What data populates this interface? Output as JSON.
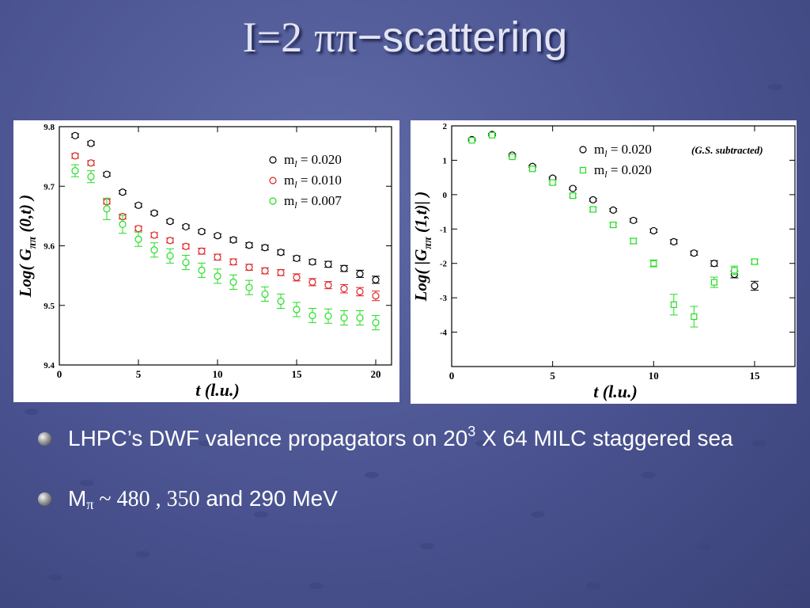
{
  "slide": {
    "title": {
      "part1": "I=2",
      "part2": "ππ",
      "part3": "−scattering"
    },
    "bullets": [
      {
        "pre": "LHPC’s DWF valence propagators on  20",
        "sup": "3",
        "post": " X 64 MILC staggered sea"
      },
      {
        "m": "M",
        "sub": "π",
        "tilde": " ~ ",
        "n1": "480",
        "sep": " , ",
        "n2": "350",
        "rest": " and 290 MeV"
      }
    ]
  },
  "chart_data": [
    {
      "type": "scatter",
      "xlabel": "t  (l.u.)",
      "ylabel": "Log( Gππ (0,t) )",
      "xlim": [
        0,
        21
      ],
      "ylim": [
        9.4,
        9.8
      ],
      "xticks": [
        0,
        5,
        10,
        15,
        20
      ],
      "yticks": [
        9.4,
        9.5,
        9.6,
        9.7,
        9.8
      ],
      "ytick_labels": [
        "9.4",
        "9.5",
        "9.6",
        "9.7",
        "9.8"
      ],
      "legend_position": "right",
      "series": [
        {
          "name": "m_l = 0.020",
          "color": "#000000",
          "marker": "circle",
          "x": [
            1,
            2,
            3,
            4,
            5,
            6,
            7,
            8,
            9,
            10,
            11,
            12,
            13,
            14,
            15,
            16,
            17,
            18,
            19,
            20
          ],
          "y": [
            9.785,
            9.772,
            9.72,
            9.69,
            9.668,
            9.655,
            9.641,
            9.632,
            9.624,
            9.617,
            9.61,
            9.601,
            9.597,
            9.589,
            9.579,
            9.573,
            9.569,
            9.562,
            9.553,
            9.543
          ],
          "err": [
            0.003,
            0.003,
            0.003,
            0.003,
            0.003,
            0.003,
            0.003,
            0.003,
            0.003,
            0.003,
            0.004,
            0.004,
            0.004,
            0.004,
            0.004,
            0.004,
            0.005,
            0.005,
            0.006,
            0.006
          ]
        },
        {
          "name": "m_l = 0.010",
          "color": "#e02020",
          "marker": "circle",
          "x": [
            1,
            2,
            3,
            4,
            5,
            6,
            7,
            8,
            9,
            10,
            11,
            12,
            13,
            14,
            15,
            16,
            17,
            18,
            19,
            20
          ],
          "y": [
            9.751,
            9.739,
            9.674,
            9.649,
            9.629,
            9.618,
            9.609,
            9.599,
            9.591,
            9.581,
            9.573,
            9.564,
            9.558,
            9.555,
            9.547,
            9.539,
            9.534,
            9.528,
            9.523,
            9.516
          ],
          "err": [
            0.004,
            0.004,
            0.004,
            0.004,
            0.004,
            0.004,
            0.004,
            0.004,
            0.005,
            0.005,
            0.005,
            0.005,
            0.005,
            0.005,
            0.006,
            0.006,
            0.006,
            0.007,
            0.007,
            0.008
          ]
        },
        {
          "name": "m_l = 0.007",
          "color": "#22dd22",
          "marker": "circle",
          "x": [
            1,
            2,
            3,
            4,
            5,
            6,
            7,
            8,
            9,
            10,
            11,
            12,
            13,
            14,
            15,
            16,
            17,
            18,
            19,
            20
          ],
          "y": [
            9.726,
            9.716,
            9.662,
            9.636,
            9.611,
            9.593,
            9.583,
            9.572,
            9.559,
            9.549,
            9.539,
            9.53,
            9.519,
            9.507,
            9.493,
            9.483,
            9.482,
            9.479,
            9.479,
            9.471
          ],
          "err": [
            0.01,
            0.01,
            0.018,
            0.015,
            0.012,
            0.012,
            0.012,
            0.012,
            0.012,
            0.012,
            0.012,
            0.012,
            0.012,
            0.012,
            0.012,
            0.012,
            0.012,
            0.012,
            0.012,
            0.012
          ]
        }
      ]
    },
    {
      "type": "scatter",
      "xlabel": "t  (l.u.)",
      "ylabel": "Log( |Gππ (1,t)| )",
      "annotation": "(G.S. subtracted)",
      "xlim": [
        0,
        17
      ],
      "ylim": [
        -5,
        2
      ],
      "xticks": [
        0,
        5,
        10,
        15
      ],
      "yticks": [
        -4,
        -3,
        -2,
        -1,
        0,
        1,
        2
      ],
      "ytick_labels": [
        "-4",
        "-3",
        "-2",
        "-1",
        "0",
        "1",
        "2"
      ],
      "legend_position": "top-right",
      "series": [
        {
          "name": "m_l = 0.020",
          "color": "#000000",
          "marker": "circle",
          "x": [
            1,
            2,
            3,
            4,
            5,
            6,
            7,
            8,
            9,
            10,
            11,
            12,
            13,
            14,
            15
          ],
          "y": [
            1.6,
            1.75,
            1.15,
            0.82,
            0.48,
            0.18,
            -0.15,
            -0.45,
            -0.75,
            -1.05,
            -1.37,
            -1.7,
            -2.0,
            -2.32,
            -2.65
          ],
          "err": [
            0.03,
            0.03,
            0.03,
            0.03,
            0.03,
            0.03,
            0.04,
            0.04,
            0.05,
            0.05,
            0.06,
            0.06,
            0.08,
            0.1,
            0.13
          ]
        },
        {
          "name": "m_l = 0.020",
          "color": "#22dd22",
          "marker": "square",
          "x": [
            1,
            2,
            3,
            4,
            5,
            6,
            7,
            8,
            9,
            10,
            11,
            12,
            13,
            14,
            15
          ],
          "y": [
            1.58,
            1.73,
            1.1,
            0.75,
            0.35,
            -0.03,
            -0.43,
            -0.88,
            -1.35,
            -2.0,
            -3.2,
            -3.55,
            -2.55,
            -2.2,
            -1.95
          ],
          "err": [
            0.03,
            0.03,
            0.04,
            0.04,
            0.05,
            0.05,
            0.06,
            0.06,
            0.08,
            0.1,
            0.3,
            0.3,
            0.15,
            0.12,
            0.07
          ]
        }
      ]
    }
  ]
}
